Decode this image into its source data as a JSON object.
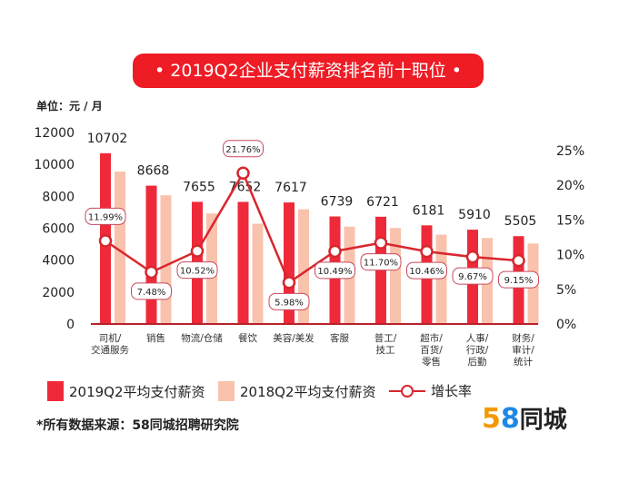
{
  "title": "• 2019Q2企业支付薪资排名前十职位 •",
  "unit_label": "单位：元 / 月",
  "note": "*所有数据来源：58同城招聘研究院",
  "logo": "58同城",
  "chart_data": {
    "type": "bar",
    "categories": [
      "司机/\n交通服务",
      "销售",
      "物流/仓储",
      "餐饮",
      "美容/美发",
      "客服",
      "普工/\n技工",
      "超市/\n百货/\n零售",
      "人事/\n行政/\n后勤",
      "财务/\n审计/\n统计"
    ],
    "series": [
      {
        "name": "2019Q2平均支付薪资",
        "type": "bar",
        "color": "#ee2a3a",
        "values": [
          10702,
          8668,
          7655,
          7652,
          7617,
          6739,
          6721,
          6181,
          5910,
          5505
        ]
      },
      {
        "name": "2018Q2平均支付薪资",
        "type": "bar",
        "color": "#f9c2ad",
        "values": [
          9556,
          8065,
          6926,
          6284,
          7187,
          6099,
          6017,
          5596,
          5389,
          5043
        ]
      },
      {
        "name": "增长率",
        "type": "line",
        "color": "#d9262e",
        "values": [
          11.99,
          7.48,
          10.52,
          21.76,
          5.98,
          10.49,
          11.7,
          10.46,
          9.67,
          9.15
        ],
        "labels": [
          "11.99%",
          "7.48%",
          "10.52%",
          "21.76%",
          "5.98%",
          "10.49%",
          "11.70%",
          "10.46%",
          "9.67%",
          "9.15%"
        ]
      }
    ],
    "y_left": {
      "ticks": [
        "0",
        "2000",
        "4000",
        "6000",
        "8000",
        "10000",
        "12000"
      ],
      "range": [
        0,
        12000
      ]
    },
    "y_right": {
      "ticks": [
        "0%",
        "5%",
        "10%",
        "15%",
        "20%",
        "25%"
      ],
      "range": [
        0,
        25
      ]
    },
    "legend_position": "bottom"
  }
}
